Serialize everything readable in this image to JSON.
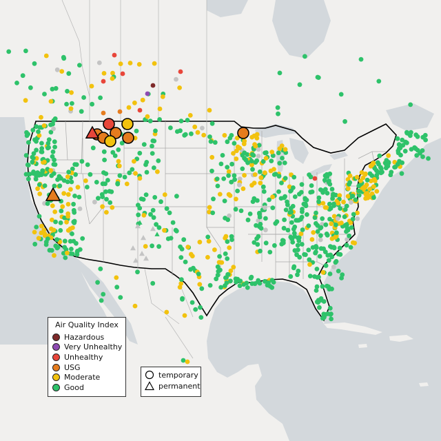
{
  "legend": {
    "title": "Air Quality Index",
    "categories": [
      {
        "label": "Hazardous",
        "color": "#7e2a2a"
      },
      {
        "label": "Very Unhealthy",
        "color": "#8e4bb2"
      },
      {
        "label": "Unhealthy",
        "color": "#e8463a"
      },
      {
        "label": "USG",
        "color": "#e57c1e"
      },
      {
        "label": "Moderate",
        "color": "#f2c20e"
      },
      {
        "label": "Good",
        "color": "#2ec26a"
      }
    ]
  },
  "monitor_types": [
    {
      "label": "temporary",
      "shape": "circle-icon"
    },
    {
      "label": "permanent",
      "shape": "triangle-icon"
    }
  ],
  "colors": {
    "land": "#f3f2f0",
    "water": "#d2d7db",
    "unknown": "#c4c4c4"
  }
}
